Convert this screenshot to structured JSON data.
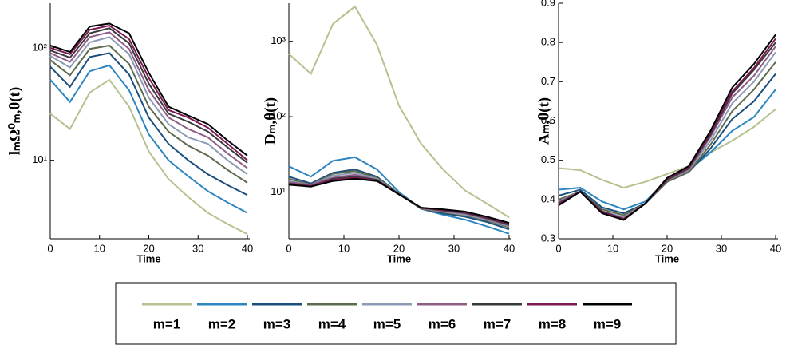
{
  "chart_data": [
    {
      "type": "line",
      "ylabel": "lₘΩ⁰ₘ,θ(t)",
      "xlabel": "Time",
      "log_y": true,
      "x": [
        0,
        4,
        8,
        12,
        16,
        20,
        24,
        28,
        32,
        36,
        40
      ],
      "xlim": [
        0,
        40
      ],
      "xticks": [
        0,
        10,
        20,
        30,
        40
      ],
      "ylim": [
        2,
        250
      ],
      "yticks": [
        {
          "value": 10,
          "label": "10¹"
        },
        {
          "value": 100,
          "label": "10²"
        }
      ],
      "series": [
        {
          "name": "m=1",
          "color": "#b5c18e",
          "values": [
            26,
            19,
            40,
            52,
            30,
            12,
            6.8,
            4.7,
            3.4,
            2.7,
            2.2
          ]
        },
        {
          "name": "m=2",
          "color": "#2e86c1",
          "values": [
            52,
            33,
            62,
            70,
            42,
            17,
            10,
            7.2,
            5.3,
            4.2,
            3.4
          ]
        },
        {
          "name": "m=3",
          "color": "#1a4e7c",
          "values": [
            68,
            45,
            83,
            90,
            58,
            24,
            14,
            10,
            7.5,
            6,
            4.9
          ]
        },
        {
          "name": "m=4",
          "color": "#5d6b4e",
          "values": [
            78,
            57,
            98,
            105,
            72,
            30,
            18,
            13.5,
            11,
            8.2,
            6.3
          ]
        },
        {
          "name": "m=5",
          "color": "#8d9ab5",
          "values": [
            85,
            67,
            112,
            125,
            88,
            36,
            21,
            16,
            14,
            10,
            7.5
          ]
        },
        {
          "name": "m=6",
          "color": "#8e5d86",
          "values": [
            90,
            75,
            125,
            138,
            98,
            42,
            24,
            19,
            16,
            11.5,
            8.5
          ]
        },
        {
          "name": "m=7",
          "color": "#3a3a3a",
          "values": [
            95,
            82,
            135,
            150,
            110,
            48,
            26,
            22,
            18,
            13,
            9.5
          ]
        },
        {
          "name": "m=8",
          "color": "#7a1a55",
          "values": [
            100,
            88,
            145,
            158,
            120,
            54,
            28,
            24,
            19.5,
            14,
            10
          ]
        },
        {
          "name": "m=9",
          "color": "#000000",
          "values": [
            105,
            92,
            155,
            165,
            135,
            60,
            30,
            25,
            21,
            15,
            11
          ]
        }
      ]
    },
    {
      "type": "line",
      "ylabel": "Dₘ,θ(t)",
      "xlabel": "Time",
      "log_y": true,
      "x": [
        0,
        4,
        8,
        12,
        16,
        20,
        24,
        28,
        32,
        36,
        40
      ],
      "xlim": [
        0,
        40
      ],
      "xticks": [
        0,
        10,
        20,
        30,
        40
      ],
      "ylim": [
        2.4,
        3200
      ],
      "yticks": [
        {
          "value": 10,
          "label": "10¹"
        },
        {
          "value": 100,
          "label": "10²"
        },
        {
          "value": 1000,
          "label": "10³"
        }
      ],
      "series": [
        {
          "name": "m=1",
          "color": "#b5c18e",
          "values": [
            680,
            370,
            1700,
            2900,
            900,
            140,
            44,
            20,
            10.5,
            7,
            4.6
          ]
        },
        {
          "name": "m=2",
          "color": "#2e86c1",
          "values": [
            22,
            16,
            26,
            29,
            20,
            10,
            6,
            5,
            4.3,
            3.5,
            2.8
          ]
        },
        {
          "name": "m=3",
          "color": "#1a4e7c",
          "values": [
            16,
            13,
            18,
            20,
            16,
            9.5,
            6,
            5.2,
            4.7,
            4,
            3.2
          ]
        },
        {
          "name": "m=4",
          "color": "#5d6b4e",
          "values": [
            15,
            12.5,
            17.5,
            19,
            15.5,
            9.5,
            6,
            5.4,
            4.9,
            4.2,
            3.4
          ]
        },
        {
          "name": "m=5",
          "color": "#8d9ab5",
          "values": [
            14,
            12.5,
            16.5,
            18,
            15,
            9.5,
            6.1,
            5.5,
            5,
            4.3,
            3.5
          ]
        },
        {
          "name": "m=6",
          "color": "#8e5d86",
          "values": [
            13.5,
            12.5,
            15.5,
            17,
            14.5,
            9.4,
            6.1,
            5.6,
            5.2,
            4.4,
            3.6
          ]
        },
        {
          "name": "m=7",
          "color": "#3a3a3a",
          "values": [
            13,
            12,
            15,
            16,
            14.5,
            9.4,
            6.2,
            5.7,
            5.3,
            4.5,
            3.7
          ]
        },
        {
          "name": "m=8",
          "color": "#7a1a55",
          "values": [
            12.8,
            12,
            14.5,
            15.5,
            14.2,
            9.3,
            6.2,
            5.8,
            5.4,
            4.6,
            3.8
          ]
        },
        {
          "name": "m=9",
          "color": "#000000",
          "values": [
            12.5,
            11.8,
            14,
            15,
            14,
            9.3,
            6.2,
            5.9,
            5.5,
            4.7,
            3.9
          ]
        }
      ]
    },
    {
      "type": "line",
      "ylabel": "Aₘ,θ(t)",
      "xlabel": "Time",
      "log_y": false,
      "x": [
        0,
        4,
        8,
        12,
        16,
        20,
        24,
        28,
        32,
        36,
        40
      ],
      "xlim": [
        0,
        40
      ],
      "xticks": [
        0,
        10,
        20,
        30,
        40
      ],
      "ylim": [
        0.3,
        0.9
      ],
      "yticks": [
        0.3,
        0.4,
        0.5,
        0.6,
        0.7,
        0.8,
        0.9
      ],
      "series": [
        {
          "name": "m=1",
          "color": "#b5c18e",
          "values": [
            0.48,
            0.475,
            0.45,
            0.43,
            0.445,
            0.465,
            0.485,
            0.52,
            0.55,
            0.585,
            0.63
          ]
        },
        {
          "name": "m=2",
          "color": "#2e86c1",
          "values": [
            0.425,
            0.43,
            0.395,
            0.375,
            0.395,
            0.45,
            0.475,
            0.52,
            0.575,
            0.61,
            0.68
          ]
        },
        {
          "name": "m=3",
          "color": "#1a4e7c",
          "values": [
            0.41,
            0.425,
            0.38,
            0.365,
            0.39,
            0.445,
            0.47,
            0.53,
            0.605,
            0.65,
            0.72
          ]
        },
        {
          "name": "m=4",
          "color": "#5d6b4e",
          "values": [
            0.4,
            0.42,
            0.375,
            0.36,
            0.39,
            0.445,
            0.47,
            0.54,
            0.625,
            0.68,
            0.75
          ]
        },
        {
          "name": "m=5",
          "color": "#8d9ab5",
          "values": [
            0.395,
            0.42,
            0.37,
            0.355,
            0.39,
            0.45,
            0.475,
            0.55,
            0.645,
            0.7,
            0.775
          ]
        },
        {
          "name": "m=6",
          "color": "#8e5d86",
          "values": [
            0.393,
            0.42,
            0.37,
            0.352,
            0.39,
            0.45,
            0.477,
            0.56,
            0.66,
            0.715,
            0.79
          ]
        },
        {
          "name": "m=7",
          "color": "#3a3a3a",
          "values": [
            0.39,
            0.42,
            0.37,
            0.35,
            0.39,
            0.45,
            0.48,
            0.565,
            0.67,
            0.73,
            0.8
          ]
        },
        {
          "name": "m=8",
          "color": "#7a1a55",
          "values": [
            0.388,
            0.42,
            0.368,
            0.35,
            0.39,
            0.452,
            0.482,
            0.57,
            0.675,
            0.735,
            0.81
          ]
        },
        {
          "name": "m=9",
          "color": "#000000",
          "values": [
            0.385,
            0.42,
            0.365,
            0.348,
            0.39,
            0.455,
            0.485,
            0.575,
            0.685,
            0.745,
            0.82
          ]
        }
      ]
    }
  ]
}
